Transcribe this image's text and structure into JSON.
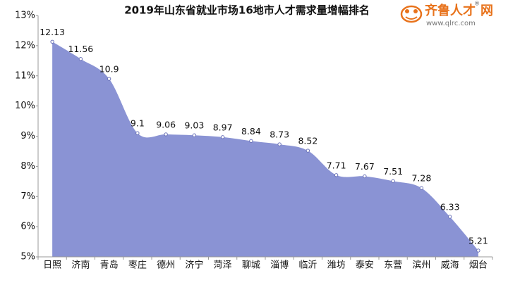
{
  "chart_data": {
    "type": "area",
    "title": "2019年山东省就业市场16地市人才需求量增幅排名",
    "categories": [
      "日照",
      "济南",
      "青岛",
      "枣庄",
      "德州",
      "济宁",
      "菏泽",
      "聊城",
      "淄博",
      "临沂",
      "潍坊",
      "泰安",
      "东营",
      "滨州",
      "威海",
      "烟台"
    ],
    "values": [
      12.13,
      11.56,
      10.9,
      9.1,
      9.06,
      9.03,
      8.97,
      8.84,
      8.73,
      8.52,
      7.71,
      7.67,
      7.51,
      7.28,
      6.33,
      5.21
    ],
    "color": "#8a93d4",
    "ylim": [
      5,
      13
    ],
    "yticks": [
      {
        "value": 5,
        "label": "5%"
      },
      {
        "value": 6,
        "label": "6%"
      },
      {
        "value": 7,
        "label": "7%"
      },
      {
        "value": 8,
        "label": "8%"
      },
      {
        "value": 9,
        "label": "9%"
      },
      {
        "value": 10,
        "label": "10%"
      },
      {
        "value": 11,
        "label": "11%"
      },
      {
        "value": 12,
        "label": "12%"
      },
      {
        "value": 13,
        "label": "13%"
      }
    ],
    "grid": false
  },
  "logo": {
    "name": "齐鲁人才",
    "suffix": "网",
    "mark": "®",
    "url": "www.qlrc.com"
  }
}
